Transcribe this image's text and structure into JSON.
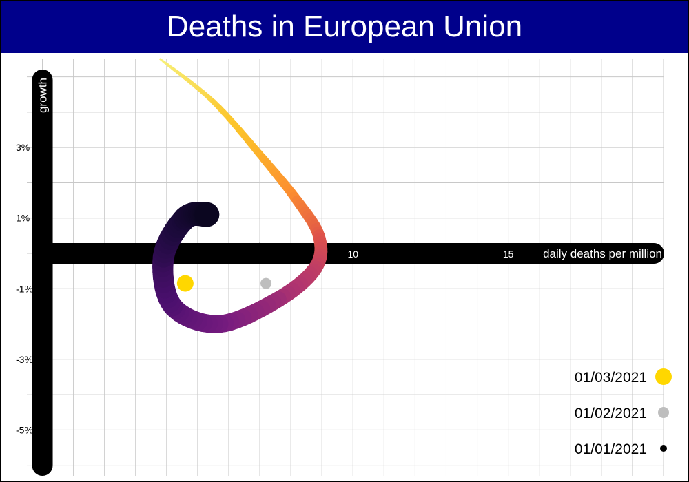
{
  "chart_data": {
    "type": "line",
    "title": "Deaths in European Union",
    "xlabel": "daily deaths per million",
    "ylabel": "growth",
    "x_ticks": [
      "10",
      "15"
    ],
    "y_ticks": [
      "3%",
      "1%",
      "-1%",
      "-3%",
      "-5%"
    ],
    "xlim": [
      -0.5,
      20
    ],
    "ylim": [
      -6.3,
      5.5
    ],
    "grid": true,
    "path_points": [
      {
        "x": 3.8,
        "y": 5.5
      },
      {
        "x": 5.5,
        "y": 4.3
      },
      {
        "x": 7.1,
        "y": 2.7
      },
      {
        "x": 8.2,
        "y": 1.5
      },
      {
        "x": 8.9,
        "y": 0.5
      },
      {
        "x": 8.8,
        "y": -0.4
      },
      {
        "x": 7.6,
        "y": -1.3
      },
      {
        "x": 5.7,
        "y": -2.0
      },
      {
        "x": 4.2,
        "y": -1.5
      },
      {
        "x": 3.9,
        "y": -0.1
      },
      {
        "x": 4.6,
        "y": 1.0
      },
      {
        "x": 5.3,
        "y": 1.1
      }
    ],
    "markers": [
      {
        "label": "01/01/2021",
        "x": 7.0,
        "y": 0.2,
        "color": "#000000"
      },
      {
        "label": "01/02/2021",
        "x": 7.2,
        "y": -0.85,
        "color": "#bebebe"
      },
      {
        "label": "01/03/2021",
        "x": 4.6,
        "y": -0.85,
        "color": "#ffd700"
      }
    ],
    "legend": [
      {
        "label": "01/03/2021",
        "color": "#ffd700"
      },
      {
        "label": "01/02/2021",
        "color": "#bebebe"
      },
      {
        "label": "01/01/2021",
        "color": "#000000"
      }
    ],
    "legend_position": "bottom-right",
    "colors": {
      "title_bg": "#00008b",
      "axis": "#000000",
      "grid": "#c8c8c8"
    }
  }
}
